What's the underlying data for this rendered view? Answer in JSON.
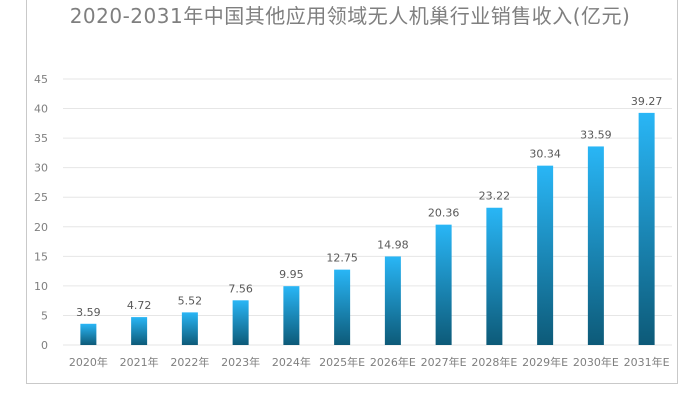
{
  "chart_data": {
    "type": "bar",
    "title": "2020-2031年中国其他应用领域无人机巢行业销售收入(亿元)",
    "categories": [
      "2020年",
      "2021年",
      "2022年",
      "2023年",
      "2024年",
      "2025年E",
      "2026年E",
      "2027年E",
      "2028年E",
      "2029年E",
      "2030年E",
      "2031年E"
    ],
    "values": [
      3.59,
      4.72,
      5.52,
      7.56,
      9.95,
      12.75,
      14.98,
      20.36,
      23.22,
      30.34,
      33.59,
      39.27
    ],
    "data_labels": [
      "3.59",
      "4.72",
      "5.52",
      "7.56",
      "9.95",
      "12.75",
      "14.98",
      "20.36",
      "23.22",
      "30.34",
      "33.59",
      "39.27"
    ],
    "yticks": [
      "0",
      "5",
      "10",
      "15",
      "20",
      "25",
      "30",
      "35",
      "40",
      "45"
    ],
    "ylim": [
      0,
      45
    ],
    "xlabel": "",
    "ylabel": "",
    "grid": true,
    "colors": {
      "bar_top": "#29b6f6",
      "bar_bottom": "#0d5a78",
      "grid": "#e6e6e6",
      "text": "#7f7f7f"
    }
  }
}
